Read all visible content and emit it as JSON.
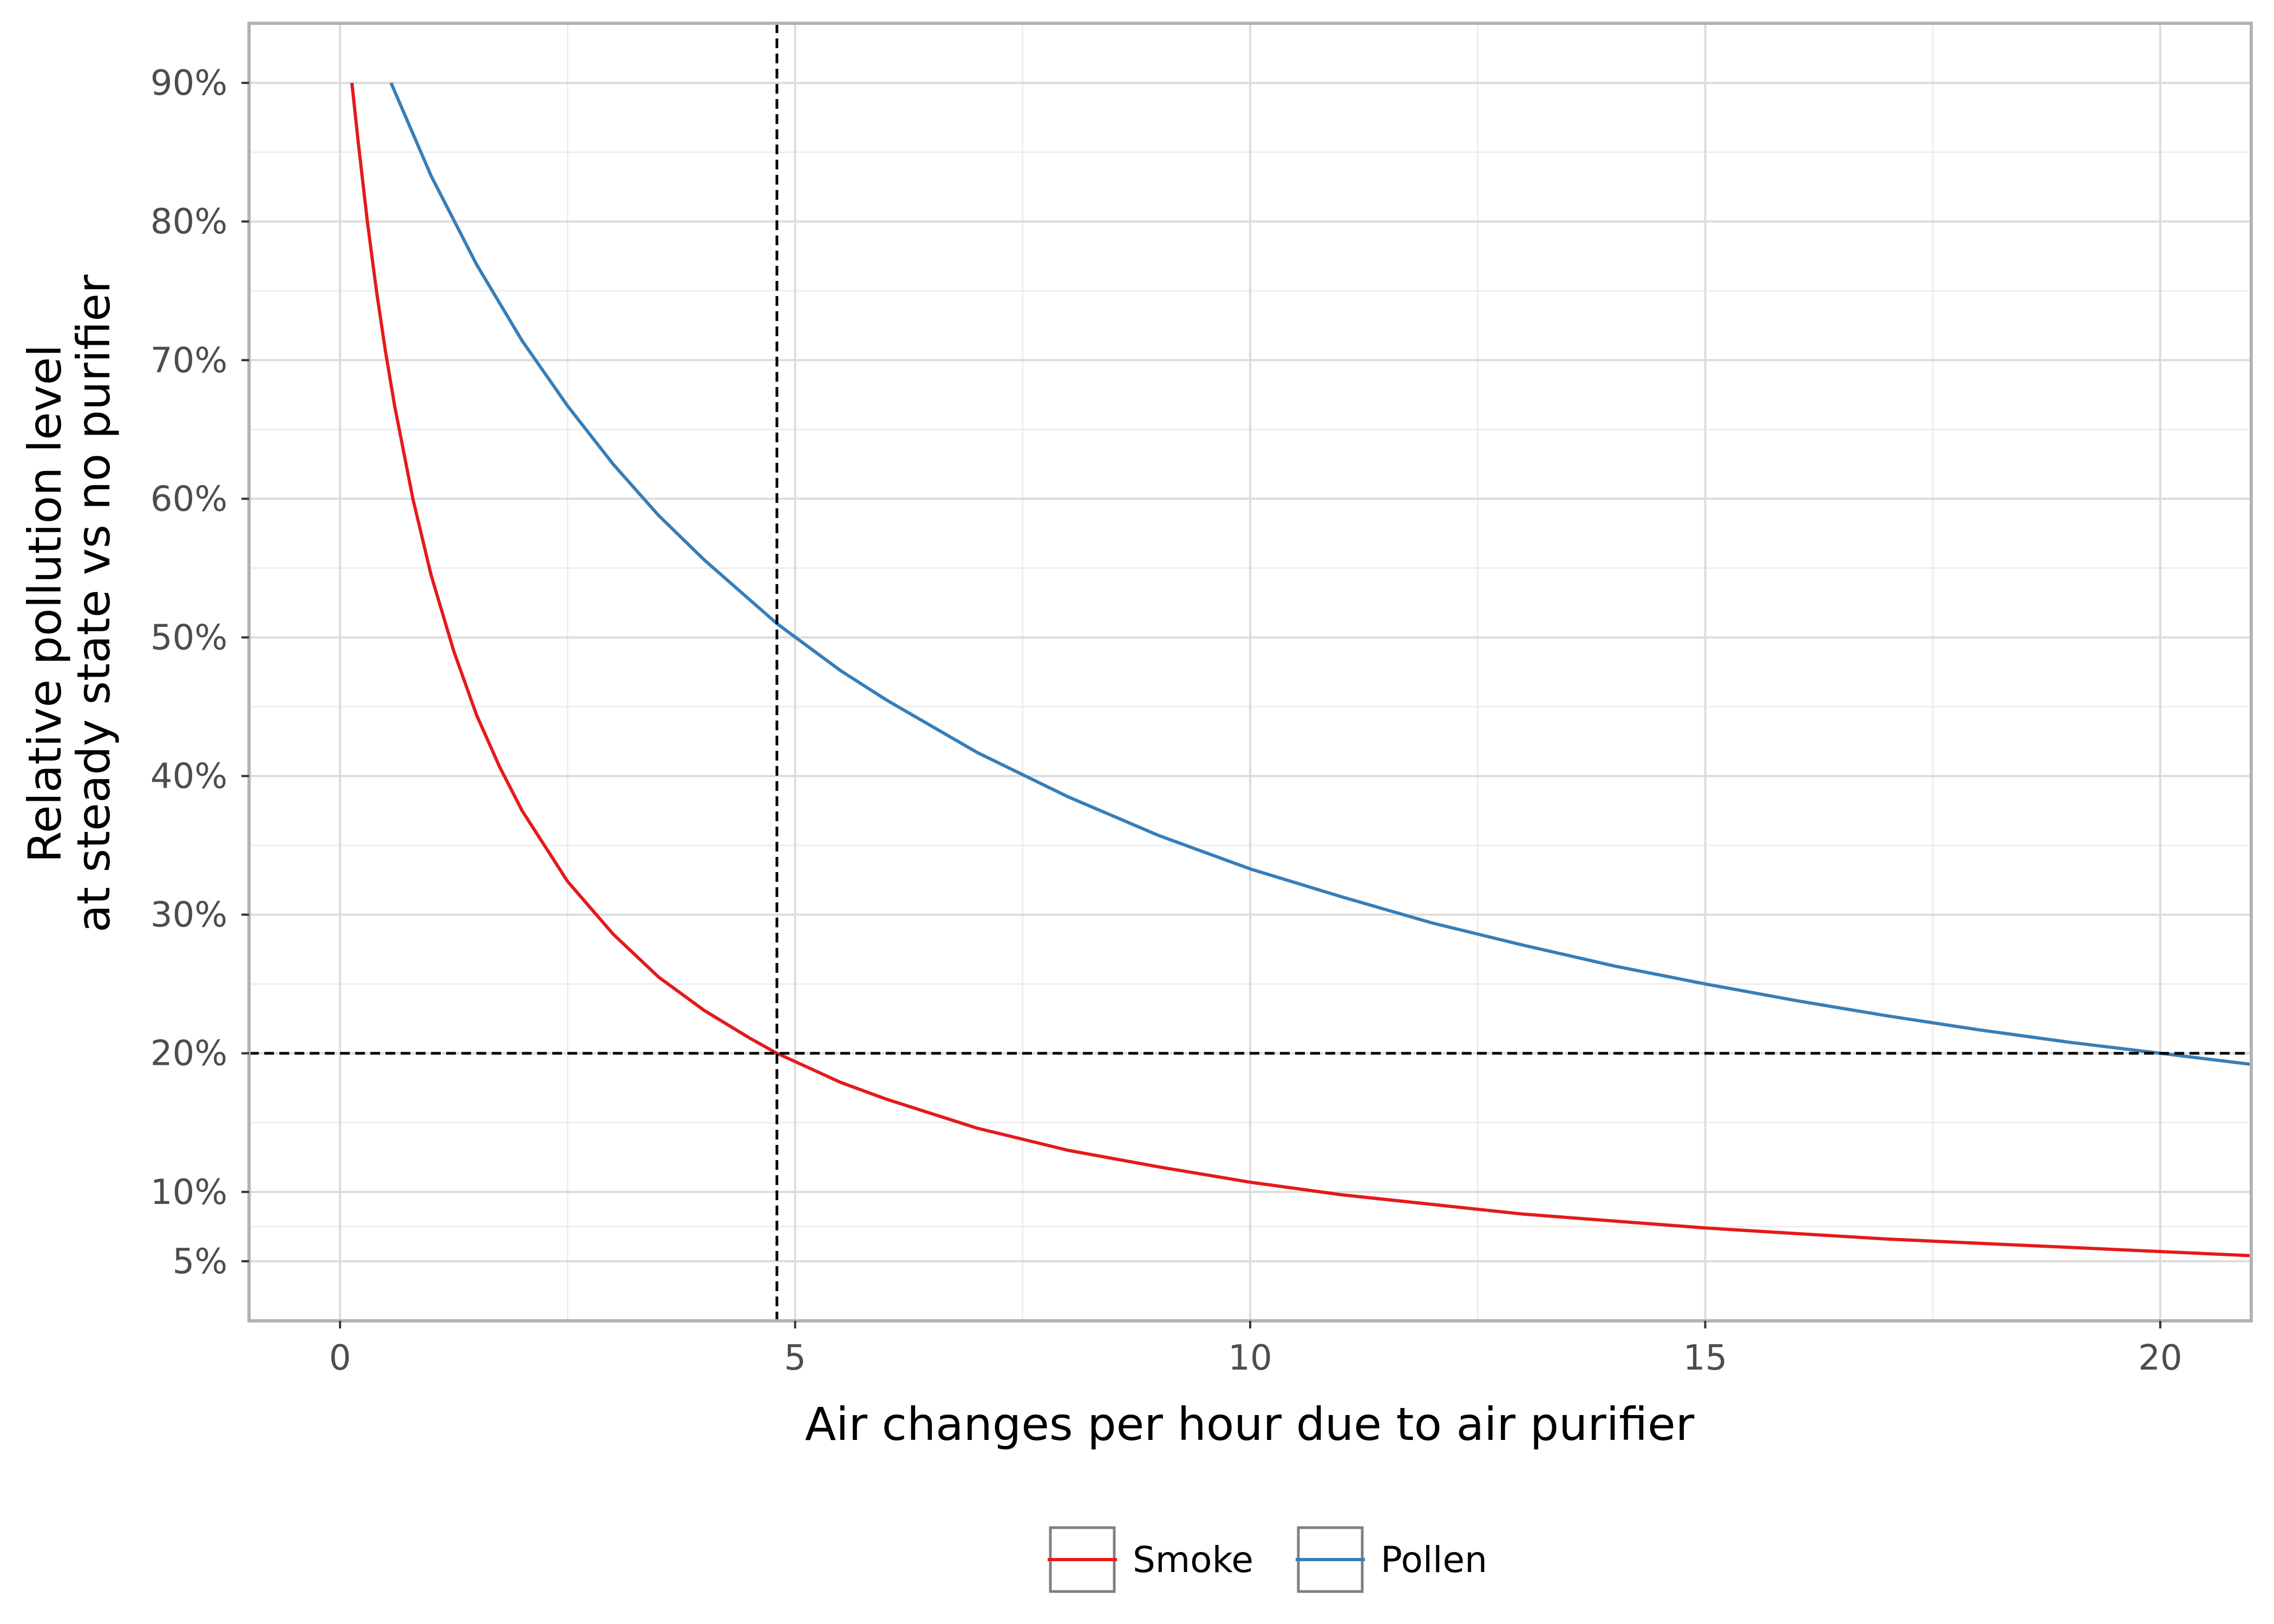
{
  "chart_data": {
    "type": "line",
    "xlabel": "Air changes per hour due to air purifier",
    "ylabel_lines": [
      "Relative pollution level",
      "at steady state vs no purifier"
    ],
    "xlim": [
      -1,
      21
    ],
    "ylim": [
      0.007,
      0.943
    ],
    "x_ticks": [
      {
        "value": 0,
        "label": "0"
      },
      {
        "value": 5,
        "label": "5"
      },
      {
        "value": 10,
        "label": "10"
      },
      {
        "value": 15,
        "label": "15"
      },
      {
        "value": 20,
        "label": "20"
      }
    ],
    "y_ticks": [
      {
        "value": 0.05,
        "label": "5%"
      },
      {
        "value": 0.1,
        "label": "10%"
      },
      {
        "value": 0.2,
        "label": "20%"
      },
      {
        "value": 0.3,
        "label": "30%"
      },
      {
        "value": 0.4,
        "label": "40%"
      },
      {
        "value": 0.5,
        "label": "50%"
      },
      {
        "value": 0.6,
        "label": "60%"
      },
      {
        "value": 0.7,
        "label": "70%"
      },
      {
        "value": 0.8,
        "label": "80%"
      },
      {
        "value": 0.9,
        "label": "90%"
      }
    ],
    "minor_x": [
      2.5,
      7.5,
      12.5,
      17.5
    ],
    "minor_y": [
      0.075,
      0.15,
      0.25,
      0.35,
      0.45,
      0.55,
      0.65,
      0.75,
      0.85
    ],
    "grid": true,
    "legend_position": "bottom",
    "reference_lines": [
      {
        "orientation": "vertical",
        "value": 4.8,
        "style": "dashed",
        "color": "#000000"
      },
      {
        "orientation": "horizontal",
        "value": 0.2,
        "style": "dashed",
        "color": "#000000"
      }
    ],
    "series": [
      {
        "name": "Smoke",
        "color": "#e41a1c",
        "x": [
          0.13,
          0.2,
          0.3,
          0.4,
          0.5,
          0.6,
          0.8,
          1.0,
          1.25,
          1.5,
          1.75,
          2.0,
          2.5,
          3.0,
          3.5,
          4.0,
          4.5,
          4.8,
          5.5,
          6.0,
          7.0,
          8.0,
          9.0,
          10.0,
          11.0,
          12.0,
          13.0,
          14.0,
          15.0,
          16.0,
          17.0,
          18.0,
          19.0,
          20.0,
          21.0
        ],
        "y": [
          0.9,
          0.857,
          0.8,
          0.75,
          0.706,
          0.667,
          0.6,
          0.545,
          0.49,
          0.444,
          0.407,
          0.375,
          0.324,
          0.286,
          0.255,
          0.231,
          0.211,
          0.2,
          0.179,
          0.167,
          0.146,
          0.13,
          0.118,
          0.107,
          0.098,
          0.091,
          0.084,
          0.079,
          0.074,
          0.07,
          0.066,
          0.063,
          0.06,
          0.057,
          0.054
        ]
      },
      {
        "name": "Pollen",
        "color": "#377eb8",
        "x": [
          0.56,
          1.0,
          1.5,
          2.0,
          2.5,
          3.0,
          3.5,
          4.0,
          4.8,
          5.5,
          6.0,
          7.0,
          8.0,
          9.0,
          10.0,
          11.0,
          12.0,
          13.0,
          14.0,
          15.0,
          16.0,
          17.0,
          18.0,
          19.0,
          20.0,
          21.0
        ],
        "y": [
          0.9,
          0.833,
          0.769,
          0.714,
          0.667,
          0.625,
          0.588,
          0.556,
          0.51,
          0.476,
          0.455,
          0.417,
          0.385,
          0.357,
          0.333,
          0.313,
          0.294,
          0.278,
          0.263,
          0.25,
          0.238,
          0.227,
          0.217,
          0.208,
          0.2,
          0.192
        ]
      }
    ]
  }
}
